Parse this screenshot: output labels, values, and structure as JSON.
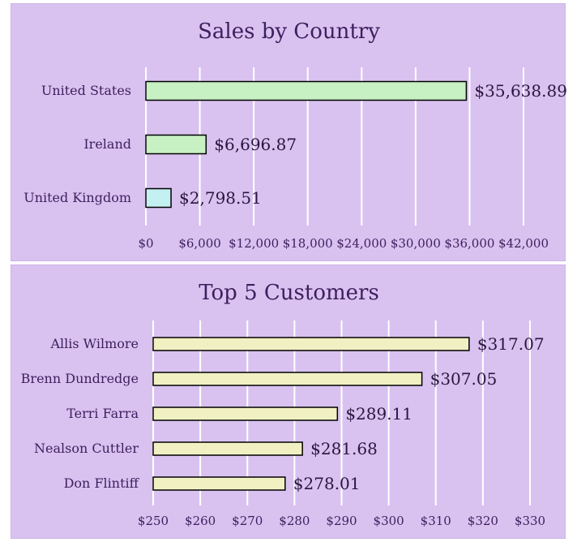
{
  "chart_data": [
    {
      "type": "bar",
      "orientation": "horizontal",
      "title": "Sales by Country",
      "categories": [
        "United States",
        "Ireland",
        "United Kingdom"
      ],
      "values": [
        35638.89,
        6696.87,
        2798.51
      ],
      "data_labels": [
        "$35,638.89",
        "$6,696.87",
        "$2,798.51"
      ],
      "bar_colors": [
        "#c7f0c3",
        "#c7f0c3",
        "#c3f0f0"
      ],
      "xlim": [
        0,
        42000
      ],
      "xticks": [
        0,
        6000,
        12000,
        18000,
        24000,
        30000,
        36000,
        42000
      ],
      "xtick_labels": [
        "$0",
        "$6,000",
        "$12,000",
        "$18,000",
        "$24,000",
        "$30,000",
        "$36,000",
        "$42,000"
      ],
      "xlabel": "",
      "ylabel": "",
      "grid": true,
      "legend": "none"
    },
    {
      "type": "bar",
      "orientation": "horizontal",
      "title": "Top 5 Customers",
      "categories": [
        "Allis Wilmore",
        "Brenn Dundredge",
        "Terri Farra",
        "Nealson Cuttler",
        "Don Flintiff"
      ],
      "values": [
        317.07,
        307.05,
        289.11,
        281.68,
        278.01
      ],
      "data_labels": [
        "$317.07",
        "$307.05",
        "$289.11",
        "$281.68",
        "$278.01"
      ],
      "bar_colors": [
        "#f0f0c3",
        "#f0f0c3",
        "#f0f0c3",
        "#f0f0c3",
        "#f0f0c3"
      ],
      "xlim": [
        250,
        330
      ],
      "xticks": [
        250,
        260,
        270,
        280,
        290,
        300,
        310,
        320,
        330
      ],
      "xtick_labels": [
        "$250",
        "$260",
        "$270",
        "$280",
        "$290",
        "$300",
        "$310",
        "$320",
        "$330"
      ],
      "xlabel": "",
      "ylabel": "",
      "grid": true,
      "legend": "none"
    }
  ],
  "colors": {
    "panel_background": "#d9c2f0",
    "gridline": "#ffffff",
    "text": "#3d1f5e"
  }
}
